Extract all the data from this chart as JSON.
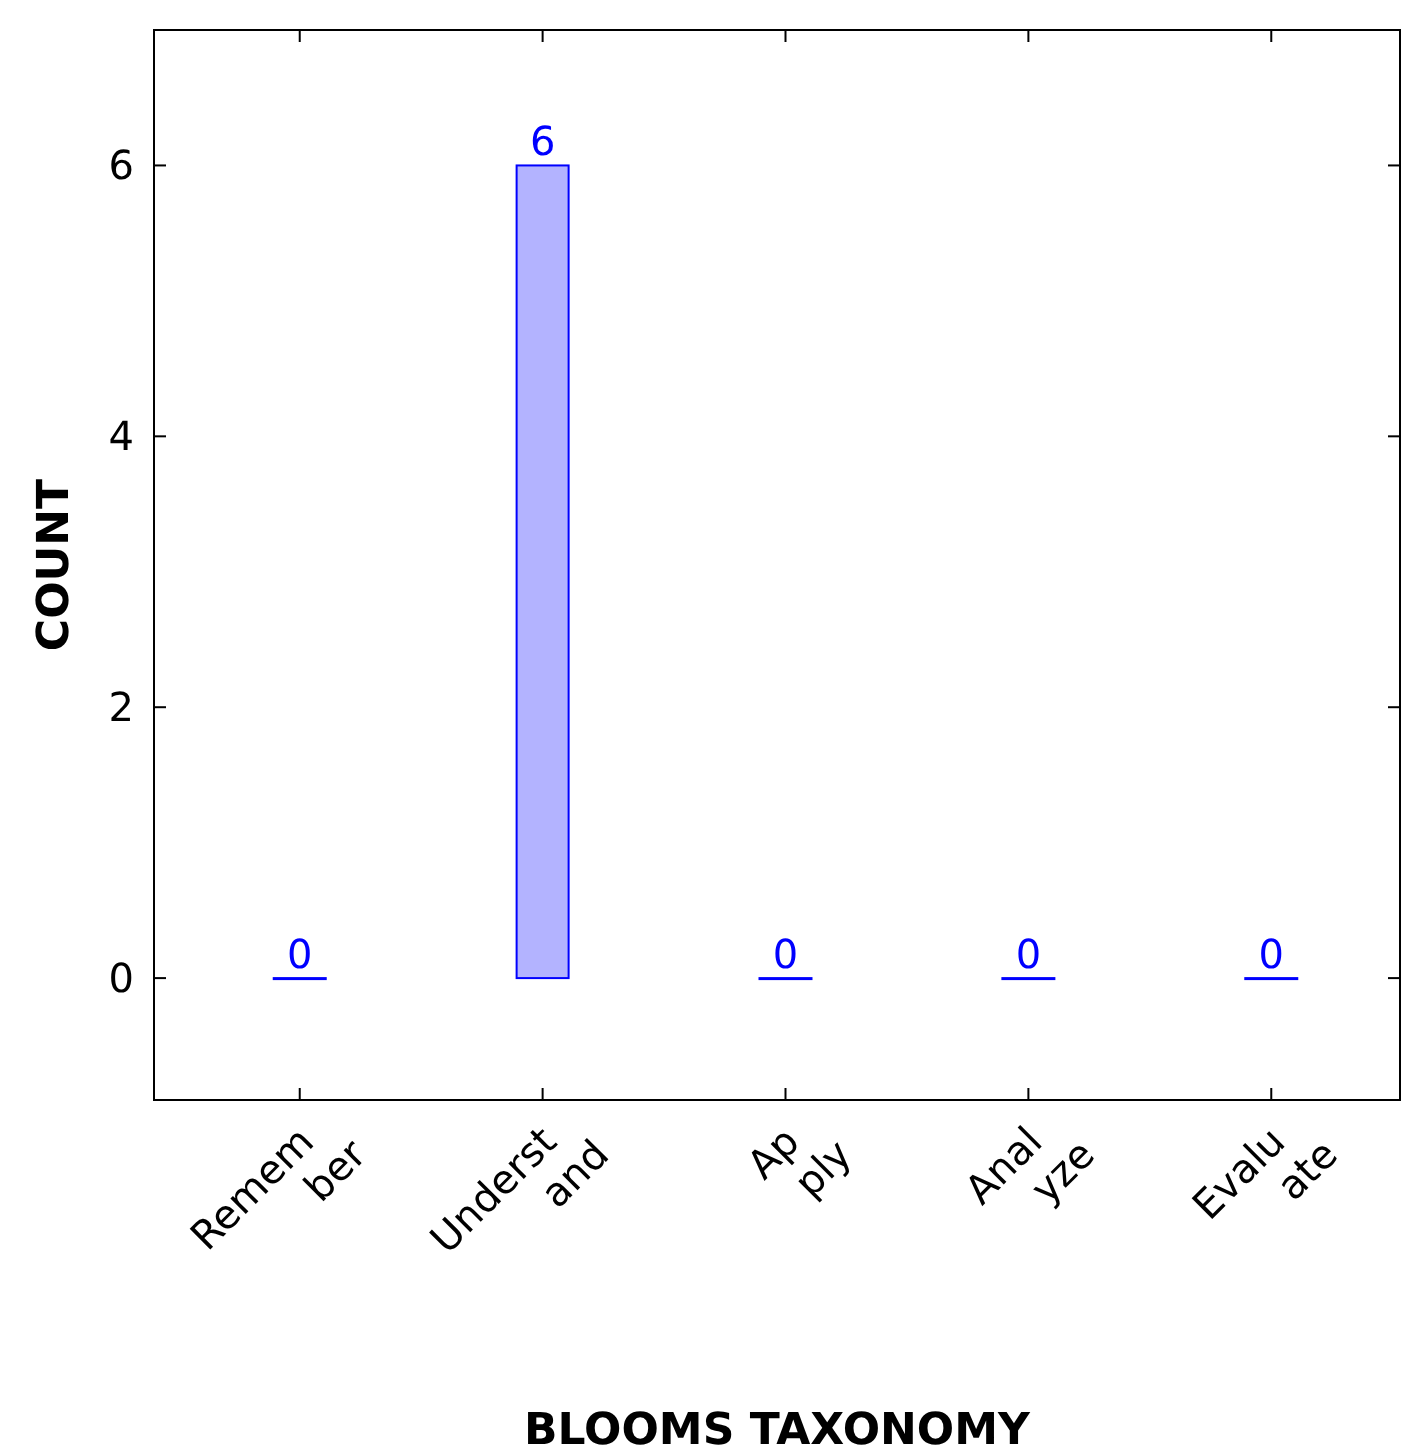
{
  "chart_data": {
    "type": "bar",
    "xlabel": "BLOOMS TAXONOMY",
    "ylabel": "COUNT",
    "categories": [
      "Remem\nber",
      "Underst\nand",
      "Ap\nply",
      "Anal\nyze",
      "Evalu\nate"
    ],
    "values": [
      0,
      6,
      0,
      0,
      0
    ],
    "color": "#b3b3ff",
    "ylim": [
      -0.9,
      7
    ],
    "yticks": [
      0,
      2,
      4,
      6
    ],
    "data_labels": true,
    "grid": false
  }
}
